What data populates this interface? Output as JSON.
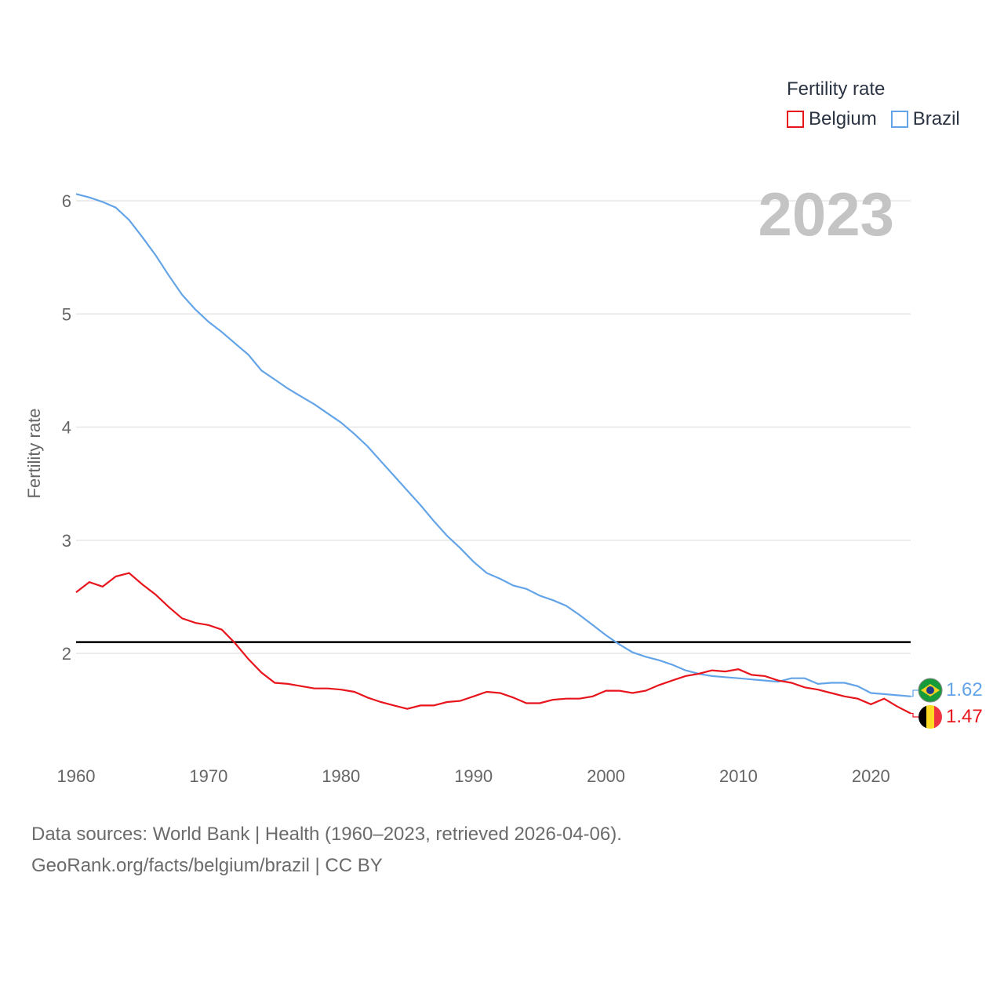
{
  "legend": {
    "title": "Fertility rate",
    "items": [
      {
        "label": "Belgium",
        "color": "#e8141c"
      },
      {
        "label": "Brazil",
        "color": "#63a4e8"
      }
    ]
  },
  "year_label": "2023",
  "end_labels": {
    "belgium": "1.47",
    "brazil": "1.62"
  },
  "source": {
    "line1": "Data sources: World Bank | Health (1960–2023, retrieved 2026-04-06).",
    "line2": "GeoRank.org/facts/belgium/brazil | CC BY"
  },
  "colors": {
    "belgium": "#e8141c",
    "brazil": "#63a4e8",
    "reference": "#000000",
    "grid": "#e6e6e6"
  },
  "chart_data": {
    "type": "line",
    "title": "Fertility rate",
    "xlabel": "",
    "ylabel": "Fertility rate",
    "xlim": [
      1960,
      2023
    ],
    "ylim": [
      1.2,
      6.1
    ],
    "xticks": [
      1960,
      1970,
      1980,
      1990,
      2000,
      2010,
      2020
    ],
    "yticks": [
      2,
      3,
      4,
      5,
      6
    ],
    "reference_line": 2.1,
    "grid": true,
    "legend_position": "top-right",
    "x": [
      1960,
      1961,
      1962,
      1963,
      1964,
      1965,
      1966,
      1967,
      1968,
      1969,
      1970,
      1971,
      1972,
      1973,
      1974,
      1975,
      1976,
      1977,
      1978,
      1979,
      1980,
      1981,
      1982,
      1983,
      1984,
      1985,
      1986,
      1987,
      1988,
      1989,
      1990,
      1991,
      1992,
      1993,
      1994,
      1995,
      1996,
      1997,
      1998,
      1999,
      2000,
      2001,
      2002,
      2003,
      2004,
      2005,
      2006,
      2007,
      2008,
      2009,
      2010,
      2011,
      2012,
      2013,
      2014,
      2015,
      2016,
      2017,
      2018,
      2019,
      2020,
      2021,
      2022,
      2023
    ],
    "series": [
      {
        "name": "Belgium",
        "values": [
          2.54,
          2.63,
          2.59,
          2.68,
          2.71,
          2.61,
          2.52,
          2.41,
          2.31,
          2.27,
          2.25,
          2.21,
          2.09,
          1.95,
          1.83,
          1.74,
          1.73,
          1.71,
          1.69,
          1.69,
          1.68,
          1.66,
          1.61,
          1.57,
          1.54,
          1.51,
          1.54,
          1.54,
          1.57,
          1.58,
          1.62,
          1.66,
          1.65,
          1.61,
          1.56,
          1.56,
          1.59,
          1.6,
          1.6,
          1.62,
          1.67,
          1.67,
          1.65,
          1.67,
          1.72,
          1.76,
          1.8,
          1.82,
          1.85,
          1.84,
          1.86,
          1.81,
          1.8,
          1.76,
          1.74,
          1.7,
          1.68,
          1.65,
          1.62,
          1.6,
          1.55,
          1.6,
          1.53,
          1.47
        ]
      },
      {
        "name": "Brazil",
        "values": [
          6.06,
          6.03,
          5.99,
          5.94,
          5.83,
          5.68,
          5.52,
          5.34,
          5.17,
          5.04,
          4.93,
          4.84,
          4.74,
          4.64,
          4.5,
          4.42,
          4.34,
          4.27,
          4.2,
          4.12,
          4.04,
          3.94,
          3.83,
          3.7,
          3.57,
          3.44,
          3.31,
          3.17,
          3.04,
          2.93,
          2.81,
          2.71,
          2.66,
          2.6,
          2.57,
          2.51,
          2.47,
          2.42,
          2.34,
          2.25,
          2.16,
          2.08,
          2.01,
          1.97,
          1.94,
          1.9,
          1.85,
          1.82,
          1.8,
          1.79,
          1.78,
          1.77,
          1.76,
          1.75,
          1.78,
          1.78,
          1.73,
          1.74,
          1.74,
          1.71,
          1.65,
          1.64,
          1.63,
          1.62
        ]
      }
    ]
  }
}
